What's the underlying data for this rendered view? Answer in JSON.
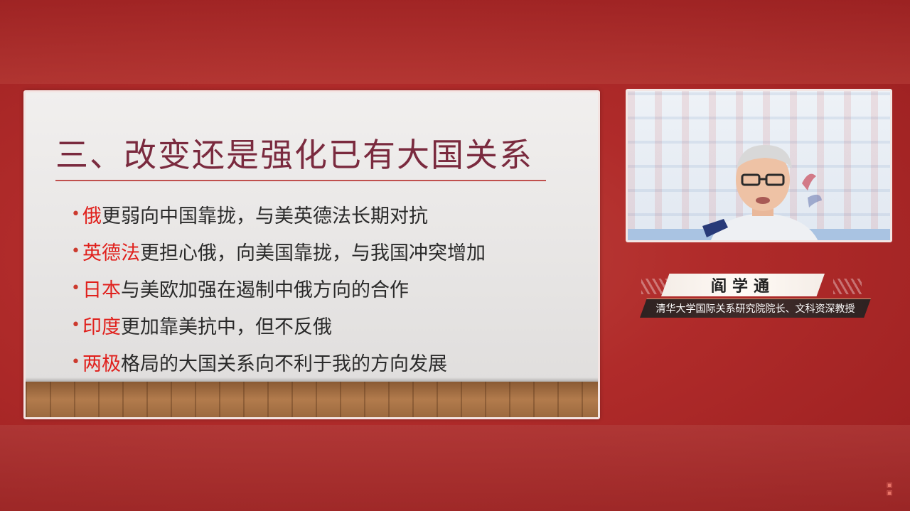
{
  "slide": {
    "title": "三、改变还是强化已有大国关系",
    "bullets": [
      {
        "highlight": "俄",
        "text": "更弱向中国靠拢，与美英德法长期对抗"
      },
      {
        "highlight": "英德法",
        "text": "更担心俄，向美国靠拢，与我国冲突增加"
      },
      {
        "highlight": "日本",
        "text": "与美欧加强在遏制中俄方向的合作"
      },
      {
        "highlight": "印度",
        "text": "更加靠美抗中，但不反俄"
      },
      {
        "highlight": "两极",
        "text": "格局的大国关系向不利于我的方向发展"
      }
    ],
    "bullet_symbol": "•"
  },
  "speaker": {
    "name": "阎学通",
    "title": "清华大学国际关系研究院院长、文科资深教授"
  },
  "colors": {
    "background": "#b02b2a",
    "title": "#7a2a3e",
    "highlight": "#e0201c",
    "rule": "#c0504d"
  }
}
